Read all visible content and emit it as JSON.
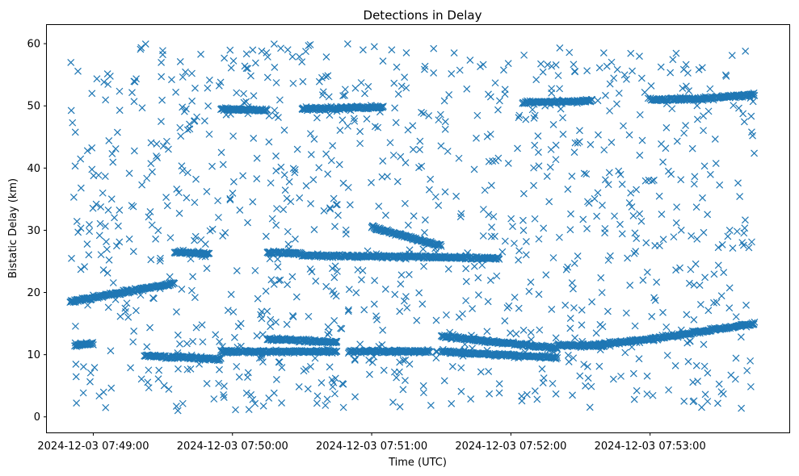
{
  "chart_data": {
    "type": "scatter",
    "title": "Detections in Delay",
    "xlabel": "Time (UTC)",
    "ylabel": "Bistatic Delay (km)",
    "marker": "x",
    "color": "#1f77b4",
    "grid": false,
    "legend": false,
    "x_ticks": [
      {
        "t": "2024-12-03T07:49:00",
        "label": "2024-12-03 07:49:00"
      },
      {
        "t": "2024-12-03T07:50:00",
        "label": "2024-12-03 07:50:00"
      },
      {
        "t": "2024-12-03T07:51:00",
        "label": "2024-12-03 07:51:00"
      },
      {
        "t": "2024-12-03T07:52:00",
        "label": "2024-12-03 07:52:00"
      },
      {
        "t": "2024-12-03T07:53:00",
        "label": "2024-12-03 07:53:00"
      }
    ],
    "y_ticks": [
      0,
      10,
      20,
      30,
      40,
      50,
      60
    ],
    "xlim": [
      "2024-12-03T07:48:40",
      "2024-12-03T07:54:00"
    ],
    "ylim": [
      -2.5,
      63
    ],
    "series": [
      {
        "tracks": [
          {
            "start": "2024-12-03T07:48:50",
            "end": "2024-12-03T07:49:35",
            "y0": 18.5,
            "y1": 21.5
          },
          {
            "start": "2024-12-03T07:48:52",
            "end": "2024-12-03T07:49:00",
            "y0": 11.5,
            "y1": 11.8
          },
          {
            "start": "2024-12-03T07:49:22",
            "end": "2024-12-03T07:49:55",
            "y0": 9.8,
            "y1": 9.3
          },
          {
            "start": "2024-12-03T07:49:35",
            "end": "2024-12-03T07:49:50",
            "y0": 26.5,
            "y1": 26.2
          },
          {
            "start": "2024-12-03T07:49:55",
            "end": "2024-12-03T07:50:15",
            "y0": 49.5,
            "y1": 49.3
          },
          {
            "start": "2024-12-03T07:50:15",
            "end": "2024-12-03T07:50:45",
            "y0": 12.5,
            "y1": 12.0
          },
          {
            "start": "2024-12-03T07:50:15",
            "end": "2024-12-03T07:50:30",
            "y0": 26.5,
            "y1": 26.3
          },
          {
            "start": "2024-12-03T07:50:30",
            "end": "2024-12-03T07:51:05",
            "y0": 49.5,
            "y1": 49.8
          },
          {
            "start": "2024-12-03T07:50:30",
            "end": "2024-12-03T07:51:55",
            "y0": 26.0,
            "y1": 25.5
          },
          {
            "start": "2024-12-03T07:51:00",
            "end": "2024-12-03T07:51:30",
            "y0": 30.5,
            "y1": 27.5
          },
          {
            "start": "2024-12-03T07:51:30",
            "end": "2024-12-03T07:52:20",
            "y0": 13.0,
            "y1": 11.0
          },
          {
            "start": "2024-12-03T07:51:30",
            "end": "2024-12-03T07:52:20",
            "y0": 10.5,
            "y1": 9.5
          },
          {
            "start": "2024-12-03T07:52:05",
            "end": "2024-12-03T07:52:35",
            "y0": 50.5,
            "y1": 50.8
          },
          {
            "start": "2024-12-03T07:52:20",
            "end": "2024-12-03T07:52:40",
            "y0": 11.5,
            "y1": 11.5
          },
          {
            "start": "2024-12-03T07:52:35",
            "end": "2024-12-03T07:53:00",
            "y0": 11.5,
            "y1": 12.5
          },
          {
            "start": "2024-12-03T07:53:00",
            "end": "2024-12-03T07:53:45",
            "y0": 12.5,
            "y1": 15.0
          },
          {
            "start": "2024-12-03T07:53:00",
            "end": "2024-12-03T07:53:25",
            "y0": 51.0,
            "y1": 51.2
          },
          {
            "start": "2024-12-03T07:53:25",
            "end": "2024-12-03T07:53:45",
            "y0": 51.3,
            "y1": 51.8
          },
          {
            "start": "2024-12-03T07:49:55",
            "end": "2024-12-03T07:50:45",
            "y0": 10.5,
            "y1": 10.5
          },
          {
            "start": "2024-12-03T07:50:50",
            "end": "2024-12-03T07:51:25",
            "y0": 10.5,
            "y1": 10.5
          }
        ],
        "noise_count": 1050,
        "noise_time_range": [
          "2024-12-03T07:48:50",
          "2024-12-03T07:53:45"
        ],
        "noise_y_range": [
          1,
          60
        ]
      }
    ]
  }
}
